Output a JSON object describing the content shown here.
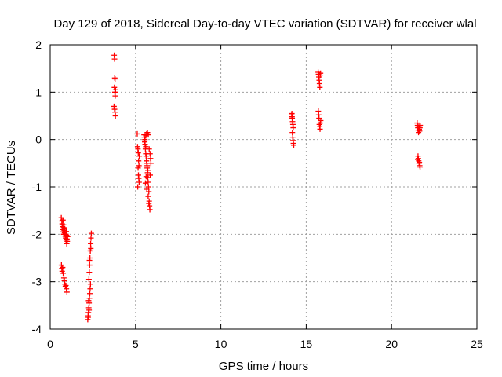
{
  "chart_data": {
    "type": "scatter",
    "title": "Day 129 of 2018, Sidereal Day-to-day VTEC variation (SDTVAR) for receiver wlal",
    "xlabel": "GPS time / hours",
    "ylabel": "SDTVAR / TECUs",
    "xlim": [
      0,
      25
    ],
    "ylim": [
      -4,
      2
    ],
    "xticks": [
      "0",
      "5",
      "10",
      "15",
      "20",
      "25"
    ],
    "yticks": [
      "-4",
      "-3",
      "-2",
      "-1",
      "0",
      "1",
      "2"
    ],
    "grid": true,
    "marker": "+",
    "colors": {
      "marker": "#ff0000",
      "grid": "#a0a0a0",
      "axis": "#000000"
    },
    "series": [
      {
        "name": "SDTVAR",
        "points": [
          [
            0.65,
            -1.65
          ],
          [
            0.68,
            -1.72
          ],
          [
            0.7,
            -1.78
          ],
          [
            0.72,
            -1.84
          ],
          [
            0.74,
            -1.9
          ],
          [
            0.76,
            -1.95
          ],
          [
            0.78,
            -1.8
          ],
          [
            0.8,
            -1.86
          ],
          [
            0.82,
            -1.92
          ],
          [
            0.84,
            -1.97
          ],
          [
            0.86,
            -2.0
          ],
          [
            0.88,
            -2.04
          ],
          [
            0.9,
            -2.08
          ],
          [
            0.92,
            -2.0
          ],
          [
            0.94,
            -1.94
          ],
          [
            0.96,
            -2.02
          ],
          [
            0.98,
            -2.1
          ],
          [
            1.0,
            -2.15
          ],
          [
            0.97,
            -2.2
          ],
          [
            1.02,
            -2.05
          ],
          [
            0.75,
            -1.7
          ],
          [
            0.79,
            -2.0
          ],
          [
            0.85,
            -1.88
          ],
          [
            0.93,
            -2.12
          ],
          [
            0.66,
            -2.65
          ],
          [
            0.68,
            -2.72
          ],
          [
            0.7,
            -2.78
          ],
          [
            0.73,
            -2.7
          ],
          [
            0.76,
            -2.82
          ],
          [
            0.8,
            -2.92
          ],
          [
            0.83,
            -2.98
          ],
          [
            0.86,
            -3.05
          ],
          [
            0.89,
            -3.1
          ],
          [
            0.92,
            -3.08
          ],
          [
            0.95,
            -3.15
          ],
          [
            0.98,
            -3.22
          ],
          [
            2.2,
            -3.8
          ],
          [
            2.22,
            -3.72
          ],
          [
            2.24,
            -3.65
          ],
          [
            2.26,
            -3.55
          ],
          [
            2.28,
            -3.45
          ],
          [
            2.3,
            -3.35
          ],
          [
            2.32,
            -3.25
          ],
          [
            2.34,
            -3.15
          ],
          [
            2.36,
            -3.05
          ],
          [
            2.27,
            -2.95
          ],
          [
            2.29,
            -2.8
          ],
          [
            2.31,
            -2.65
          ],
          [
            2.33,
            -2.5
          ],
          [
            2.35,
            -2.35
          ],
          [
            2.37,
            -2.2
          ],
          [
            2.39,
            -2.08
          ],
          [
            2.41,
            -1.98
          ],
          [
            2.25,
            -3.4
          ],
          [
            2.3,
            -2.55
          ],
          [
            2.38,
            -2.3
          ],
          [
            2.23,
            -3.75
          ],
          [
            2.28,
            -3.6
          ],
          [
            3.75,
            1.78
          ],
          [
            3.77,
            1.7
          ],
          [
            3.78,
            1.3
          ],
          [
            3.8,
            1.28
          ],
          [
            3.76,
            1.1
          ],
          [
            3.79,
            1.0
          ],
          [
            3.81,
            0.92
          ],
          [
            3.74,
            0.7
          ],
          [
            3.77,
            0.64
          ],
          [
            3.8,
            0.58
          ],
          [
            3.82,
            0.5
          ],
          [
            3.83,
            1.05
          ],
          [
            5.1,
            0.12
          ],
          [
            5.12,
            -0.15
          ],
          [
            5.14,
            -0.2
          ],
          [
            5.16,
            -0.28
          ],
          [
            5.18,
            -0.45
          ],
          [
            5.2,
            -0.55
          ],
          [
            5.15,
            -0.6
          ],
          [
            5.17,
            -0.75
          ],
          [
            5.19,
            -0.82
          ],
          [
            5.21,
            -0.9
          ],
          [
            5.13,
            -1.0
          ],
          [
            5.22,
            -0.35
          ],
          [
            5.5,
            0.1
          ],
          [
            5.52,
            0.05
          ],
          [
            5.54,
            -0.05
          ],
          [
            5.56,
            -0.1
          ],
          [
            5.58,
            -0.2
          ],
          [
            5.6,
            -0.3
          ],
          [
            5.62,
            -0.35
          ],
          [
            5.64,
            -0.45
          ],
          [
            5.66,
            -0.5
          ],
          [
            5.68,
            -0.6
          ],
          [
            5.7,
            -0.7
          ],
          [
            5.72,
            -0.8
          ],
          [
            5.74,
            -0.9
          ],
          [
            5.76,
            -1.0
          ],
          [
            5.78,
            -1.1
          ],
          [
            5.8,
            -1.3
          ],
          [
            5.82,
            -1.4
          ],
          [
            5.84,
            -1.48
          ],
          [
            5.55,
            0.0
          ],
          [
            5.6,
            -0.15
          ],
          [
            5.65,
            0.12
          ],
          [
            5.7,
            0.15
          ],
          [
            5.75,
            0.1
          ],
          [
            5.8,
            -0.2
          ],
          [
            5.85,
            -0.3
          ],
          [
            5.88,
            -0.4
          ],
          [
            5.9,
            -0.5
          ],
          [
            5.68,
            -0.55
          ],
          [
            5.72,
            -0.65
          ],
          [
            5.62,
            -0.78
          ],
          [
            5.58,
            -0.92
          ],
          [
            5.66,
            -1.05
          ],
          [
            5.74,
            -1.2
          ],
          [
            5.78,
            -1.35
          ],
          [
            5.86,
            -0.75
          ],
          [
            5.6,
            0.08
          ],
          [
            14.15,
            0.52
          ],
          [
            14.18,
            0.45
          ],
          [
            14.2,
            0.38
          ],
          [
            14.22,
            0.32
          ],
          [
            14.24,
            0.25
          ],
          [
            14.16,
            0.55
          ],
          [
            14.19,
            0.15
          ],
          [
            14.21,
            0.05
          ],
          [
            14.23,
            -0.02
          ],
          [
            14.25,
            -0.08
          ],
          [
            14.27,
            -0.12
          ],
          [
            14.17,
            0.48
          ],
          [
            15.7,
            1.42
          ],
          [
            15.72,
            1.38
          ],
          [
            15.74,
            1.32
          ],
          [
            15.76,
            1.25
          ],
          [
            15.78,
            1.18
          ],
          [
            15.8,
            1.1
          ],
          [
            15.82,
            1.36
          ],
          [
            15.84,
            1.4
          ],
          [
            15.71,
            0.6
          ],
          [
            15.73,
            0.52
          ],
          [
            15.75,
            0.45
          ],
          [
            15.77,
            0.32
          ],
          [
            15.79,
            0.28
          ],
          [
            15.81,
            0.22
          ],
          [
            15.83,
            0.35
          ],
          [
            15.85,
            0.4
          ],
          [
            21.5,
            0.35
          ],
          [
            21.52,
            0.3
          ],
          [
            21.54,
            0.25
          ],
          [
            21.56,
            0.2
          ],
          [
            21.58,
            0.15
          ],
          [
            21.6,
            0.28
          ],
          [
            21.62,
            0.22
          ],
          [
            21.64,
            0.18
          ],
          [
            21.66,
            0.25
          ],
          [
            21.68,
            0.3
          ],
          [
            21.55,
            -0.35
          ],
          [
            21.57,
            -0.4
          ],
          [
            21.59,
            -0.45
          ],
          [
            21.61,
            -0.5
          ],
          [
            21.63,
            -0.48
          ],
          [
            21.65,
            -0.55
          ],
          [
            21.67,
            -0.58
          ],
          [
            21.53,
            -0.42
          ]
        ]
      }
    ]
  }
}
